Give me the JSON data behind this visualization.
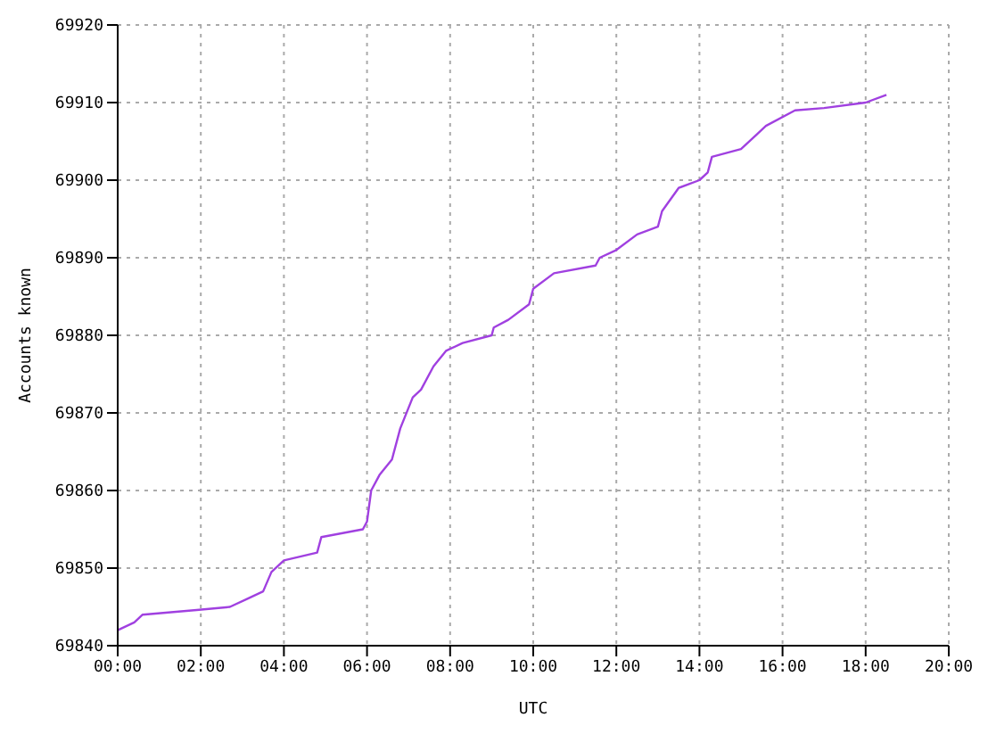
{
  "chart_data": {
    "type": "line",
    "xlabel": "UTC",
    "ylabel": "Accounts known",
    "xlim": [
      0,
      20
    ],
    "ylim": [
      69840,
      69920
    ],
    "xticks": [
      {
        "value": 0,
        "label": "00:00"
      },
      {
        "value": 2,
        "label": "02:00"
      },
      {
        "value": 4,
        "label": "04:00"
      },
      {
        "value": 6,
        "label": "06:00"
      },
      {
        "value": 8,
        "label": "08:00"
      },
      {
        "value": 10,
        "label": "10:00"
      },
      {
        "value": 12,
        "label": "12:00"
      },
      {
        "value": 14,
        "label": "14:00"
      },
      {
        "value": 16,
        "label": "16:00"
      },
      {
        "value": 18,
        "label": "18:00"
      },
      {
        "value": 20,
        "label": "20:00"
      }
    ],
    "yticks": [
      69840,
      69850,
      69860,
      69870,
      69880,
      69890,
      69900,
      69910,
      69920
    ],
    "grid": true,
    "legend": false,
    "marker": "none",
    "line_style": "solid",
    "series": [
      {
        "color": "#a040e0",
        "x": [
          0,
          0.4,
          0.6,
          1.9,
          2.7,
          3.1,
          3.5,
          3.7,
          4.0,
          4.8,
          4.9,
          5.9,
          6.0,
          6.1,
          6.3,
          6.6,
          6.8,
          7.1,
          7.3,
          7.6,
          7.9,
          8.3,
          9.0,
          9.05,
          9.4,
          9.9,
          10.0,
          10.5,
          11.5,
          11.6,
          12.0,
          12.5,
          13.0,
          13.1,
          13.5,
          14.0,
          14.2,
          14.3,
          15.0,
          15.4,
          15.6,
          16.3,
          17.0,
          18.0,
          18.5
        ],
        "values": [
          69842,
          69843,
          69844,
          69844.6,
          69845,
          69846,
          69847,
          69849.5,
          69851,
          69852,
          69854,
          69855,
          69856,
          69860,
          69862,
          69864,
          69868,
          69872,
          69873,
          69876,
          69878,
          69879,
          69880,
          69881,
          69882,
          69884,
          69886,
          69888,
          69889,
          69890,
          69891,
          69893,
          69894,
          69896,
          69899,
          69900,
          69901,
          69903,
          69904,
          69906,
          69907,
          69909,
          69909.3,
          69910,
          69911
        ]
      }
    ]
  }
}
